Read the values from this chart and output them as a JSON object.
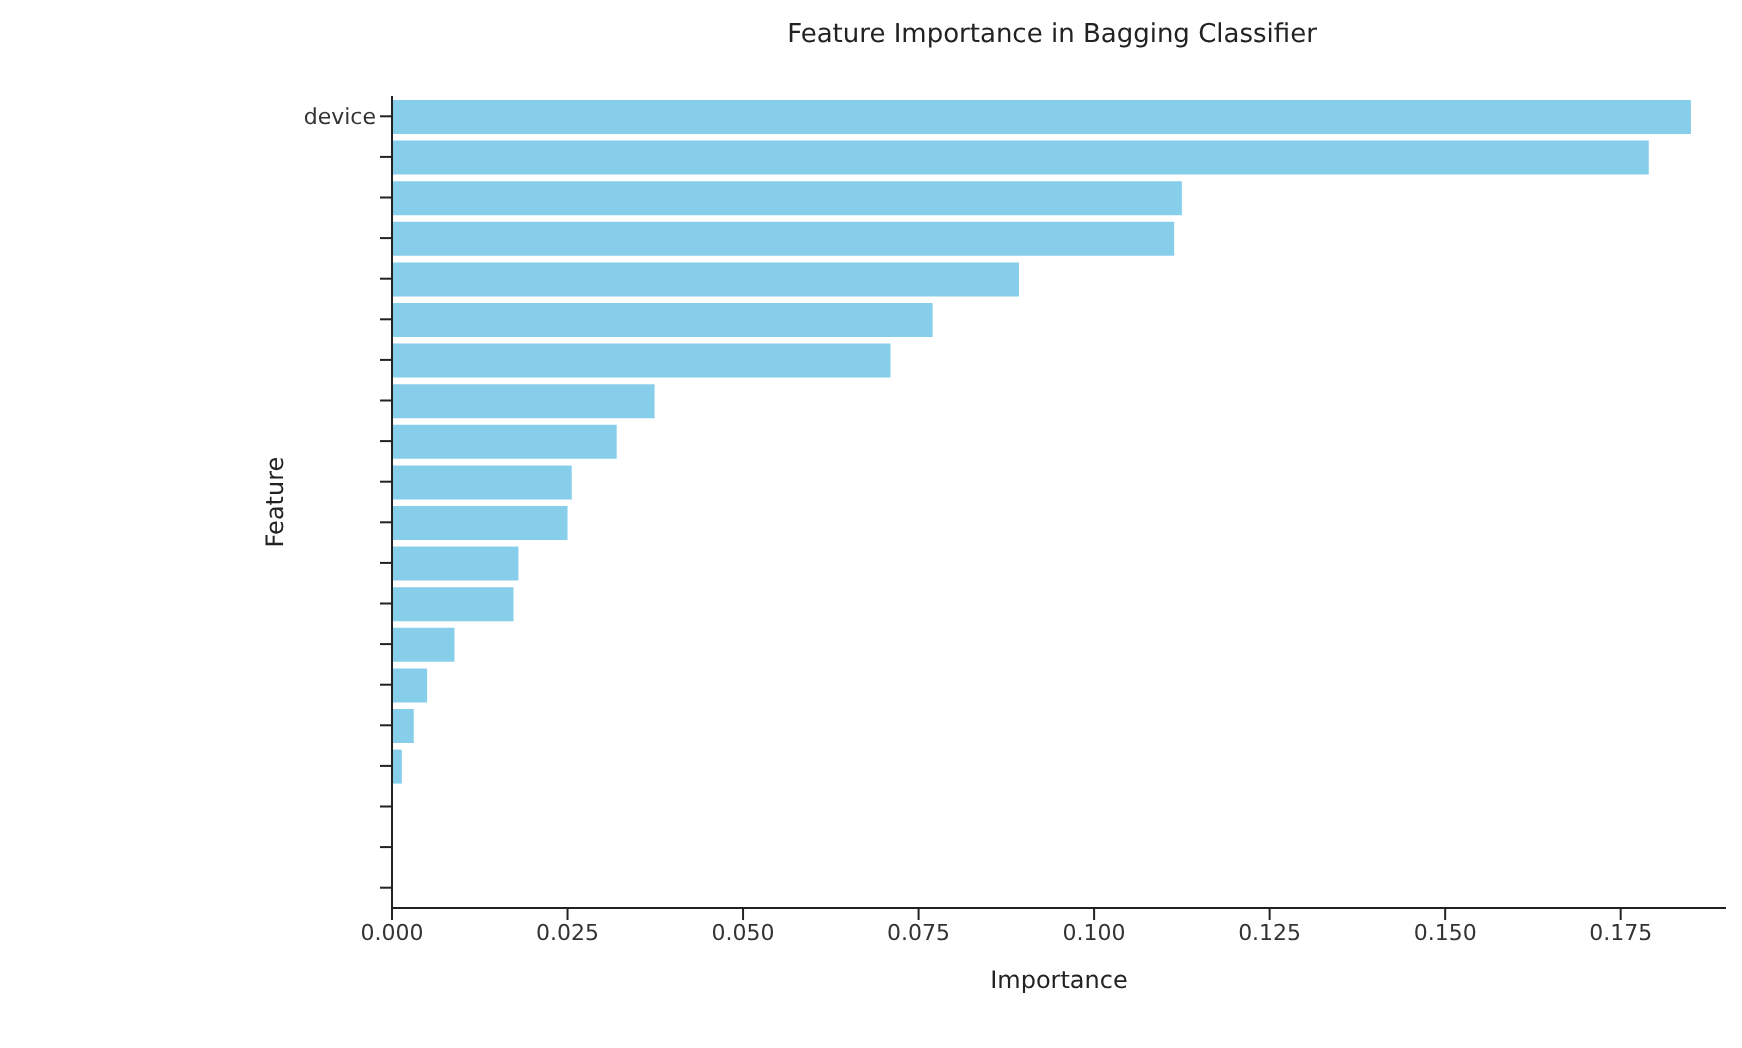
{
  "chart_data": {
    "type": "bar",
    "orientation": "horizontal",
    "title": "Feature Importance in Bagging Classifier",
    "xlabel": "Importance",
    "ylabel": "Feature",
    "categories": [
      "device",
      null,
      null,
      null,
      null,
      null,
      null,
      null,
      null,
      null,
      null,
      null,
      null,
      null,
      null,
      null,
      null,
      null,
      null,
      null
    ],
    "values": [
      0.185,
      0.179,
      0.1125,
      0.1114,
      0.0893,
      0.077,
      0.071,
      0.0374,
      0.032,
      0.0256,
      0.025,
      0.018,
      0.0173,
      0.0089,
      0.005,
      0.0031,
      0.0014,
      0,
      0,
      0
    ],
    "color": "#87ceeb",
    "xlim": [
      0,
      0.19
    ],
    "xticks": [
      {
        "value": 0,
        "label": "0.000"
      },
      {
        "value": 0.025,
        "label": "0.025"
      },
      {
        "value": 0.05,
        "label": "0.050"
      },
      {
        "value": 0.075,
        "label": "0.075"
      },
      {
        "value": 0.1,
        "label": "0.100"
      },
      {
        "value": 0.125,
        "label": "0.125"
      },
      {
        "value": 0.15,
        "label": "0.150"
      },
      {
        "value": 0.175,
        "label": "0.175"
      }
    ],
    "grid": false,
    "legend": false
  }
}
